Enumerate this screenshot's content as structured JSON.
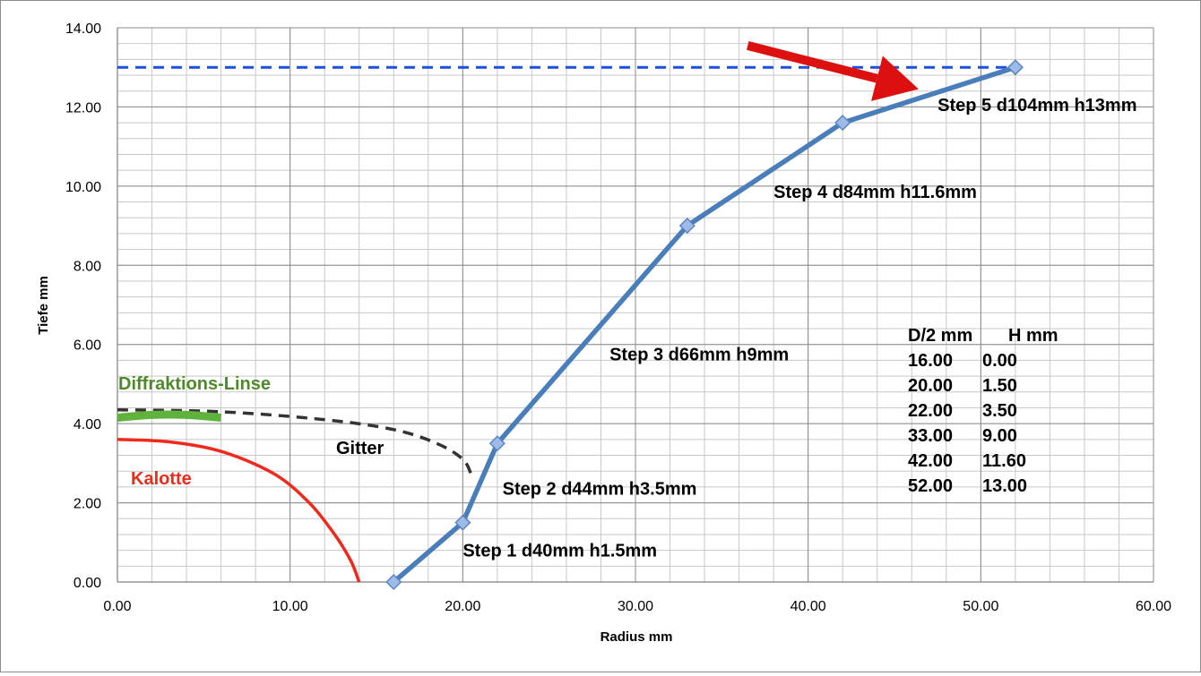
{
  "chart_data": {
    "type": "line",
    "xlabel": "Radius mm",
    "ylabel": "Tiefe mm",
    "xlim": [
      0,
      60
    ],
    "ylim": [
      0,
      14
    ],
    "grid": true,
    "x_major_ticks": [
      "0.00",
      "10.00",
      "20.00",
      "30.00",
      "40.00",
      "50.00",
      "60.00"
    ],
    "y_major_ticks": [
      "0.00",
      "2.00",
      "4.00",
      "6.00",
      "8.00",
      "10.00",
      "12.00",
      "14.00"
    ],
    "series": [
      {
        "color": "#4a7ebb",
        "marker": "diamond",
        "x": [
          16,
          20,
          22,
          33,
          42,
          52
        ],
        "y": [
          0,
          1.5,
          3.5,
          9,
          11.6,
          13
        ]
      }
    ],
    "reference_line": {
      "y": 13,
      "x_range": [
        0,
        52
      ],
      "style": "dashed",
      "color": "#1f4fe0"
    },
    "curves": {
      "kalotte": {
        "label": "Kalotte",
        "color": "#ee2a1c",
        "points": [
          [
            0,
            3.6
          ],
          [
            3,
            3.54
          ],
          [
            6,
            3.3
          ],
          [
            9,
            2.75
          ],
          [
            11,
            2.05
          ],
          [
            12.5,
            1.25
          ],
          [
            13.5,
            0.55
          ],
          [
            14,
            0
          ]
        ]
      },
      "gitter": {
        "label": "Gitter",
        "color": "#333333",
        "points": [
          [
            0,
            4.35
          ],
          [
            6,
            4.3
          ],
          [
            12,
            4.1
          ],
          [
            16,
            3.85
          ],
          [
            18.5,
            3.5
          ],
          [
            20,
            3.1
          ],
          [
            20.5,
            2.7
          ]
        ]
      },
      "diffraktions_linse": {
        "label": "Diffraktions-Linse",
        "color": "#5fb33c",
        "points": [
          [
            0,
            4.15
          ],
          [
            2,
            4.22
          ],
          [
            4,
            4.22
          ],
          [
            6,
            4.15
          ]
        ]
      }
    },
    "annotations": [
      {
        "text": "Step 1 d40mm h1.5mm",
        "x": 20,
        "y": 0.65
      },
      {
        "text": "Step 2 d44mm h3.5mm",
        "x": 22.3,
        "y": 2.2
      },
      {
        "text": "Step 3 d66mm h9mm",
        "x": 28.5,
        "y": 5.6
      },
      {
        "text": "Step 4 d84mm h11.6mm",
        "x": 38,
        "y": 9.7
      },
      {
        "text": "Step 5 d104mm h13mm",
        "x": 47.5,
        "y": 11.9
      }
    ],
    "arrow": {
      "color": "#dd1010",
      "from": [
        36.5,
        13.55
      ],
      "to": [
        46.4,
        12.45
      ]
    },
    "data_table": {
      "headers": [
        "D/2 mm",
        "H mm"
      ],
      "rows": [
        [
          "16.00",
          "0.00"
        ],
        [
          "20.00",
          "1.50"
        ],
        [
          "22.00",
          "3.50"
        ],
        [
          "33.00",
          "9.00"
        ],
        [
          "42.00",
          "11.60"
        ],
        [
          "52.00",
          "13.00"
        ]
      ]
    }
  }
}
